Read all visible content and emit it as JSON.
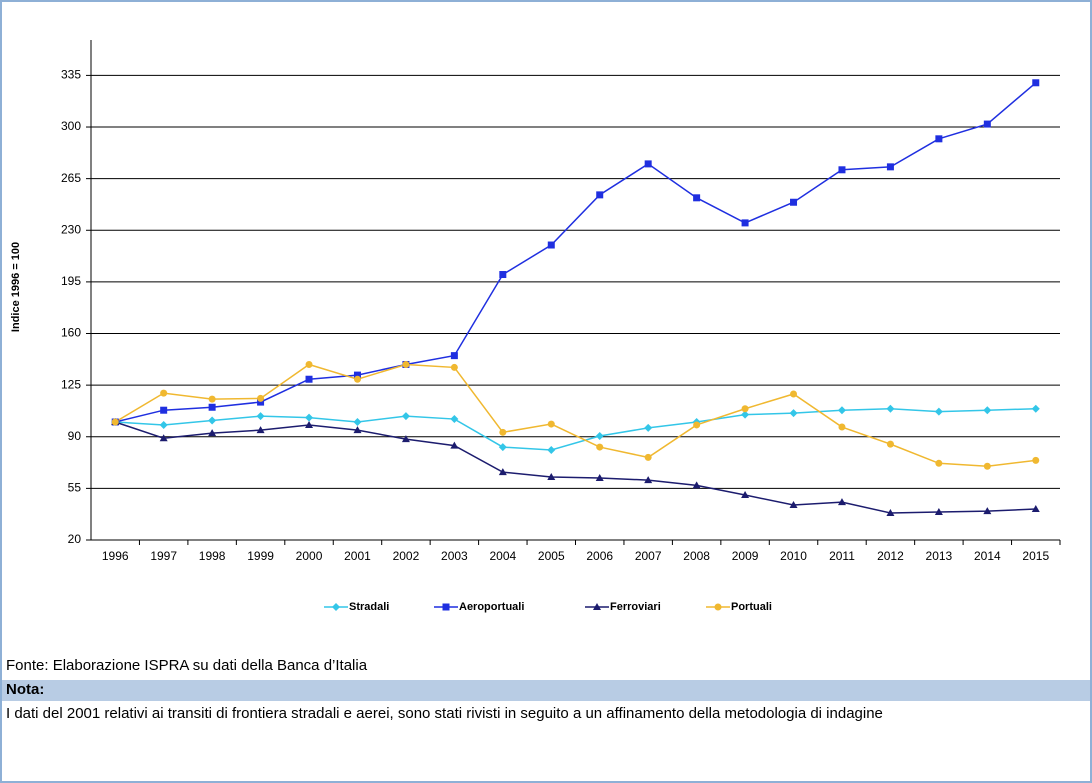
{
  "chart_data": {
    "type": "line",
    "y_label": "Indice 1996 = 100",
    "categories": [
      "1996",
      "1997",
      "1998",
      "1999",
      "2000",
      "2001",
      "2002",
      "2003",
      "2004",
      "2005",
      "2006",
      "2007",
      "2008",
      "2009",
      "2010",
      "2011",
      "2012",
      "2013",
      "2014",
      "2015"
    ],
    "series": [
      {
        "name": "Stradali",
        "color": "#33c6e8",
        "marker": "diamond",
        "values": [
          100,
          98,
          101,
          104,
          103,
          100,
          104,
          102,
          83,
          81,
          90.5,
          96,
          100,
          105,
          106,
          108,
          109,
          107,
          108,
          109
        ]
      },
      {
        "name": "Aeroportuali",
        "color": "#1f2fe0",
        "marker": "square",
        "values": [
          100,
          108,
          110,
          113.5,
          129,
          131.8,
          139,
          145,
          200,
          220,
          254,
          275,
          252,
          235,
          249,
          271,
          273,
          292,
          302,
          330
        ]
      },
      {
        "name": "Ferroviari",
        "color": "#1c1c6e",
        "marker": "triangle",
        "values": [
          100,
          89,
          92.5,
          94.5,
          98,
          94.5,
          88.4,
          84,
          66,
          62.7,
          62,
          60.6,
          57,
          50.5,
          43.7,
          45.7,
          38.3,
          39,
          39.6,
          41
        ]
      },
      {
        "name": "Portuali",
        "color": "#f0b830",
        "marker": "circle",
        "values": [
          100,
          119.6,
          115.5,
          116,
          139,
          129,
          139,
          137,
          93,
          98.6,
          83,
          76,
          98,
          109,
          119,
          96.6,
          85,
          72,
          70,
          74
        ]
      }
    ],
    "ylim": [
      20,
      359
    ],
    "yticks": [
      20,
      55,
      90,
      125,
      160,
      195,
      230,
      265,
      300,
      335
    ],
    "grid": true,
    "legend": "bottom"
  },
  "source": "Fonte: Elaborazione ISPRA su dati della Banca d’Italia",
  "note": {
    "label": "Nota:",
    "text": "I dati del 2001 relativi ai transiti di frontiera stradali e aerei, sono stati rivisti in seguito a un affinamento della metodologia di indagine"
  }
}
